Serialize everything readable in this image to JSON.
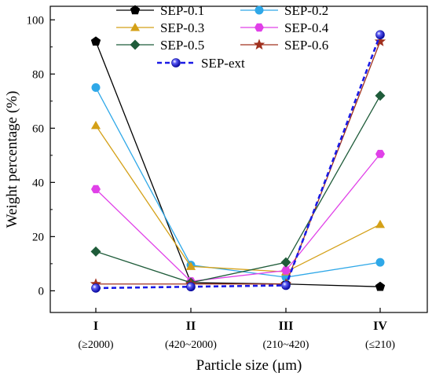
{
  "chart_data": {
    "type": "line",
    "title": "",
    "xlabel": "Particle size (μm)",
    "ylabel": "Weight percentage (%)",
    "categories": [
      "I",
      "II",
      "III",
      "IV"
    ],
    "category_sublabels": [
      "(≥2000)",
      "(420~2000)",
      "(210~420)",
      "(≤210)"
    ],
    "ylim": [
      -8,
      105
    ],
    "yticks": [
      0,
      20,
      40,
      60,
      80,
      100
    ],
    "legend_position": "top-center",
    "grid": false,
    "series": [
      {
        "name": "SEP-0.1",
        "color": "#000000",
        "marker": "pentagon",
        "dashed": false,
        "values": [
          92,
          3,
          2.5,
          1.5
        ]
      },
      {
        "name": "SEP-0.2",
        "color": "#2FA8E8",
        "marker": "circle",
        "dashed": false,
        "values": [
          75,
          9.5,
          5,
          10.5
        ]
      },
      {
        "name": "SEP-0.3",
        "color": "#D4A017",
        "marker": "triangle",
        "dashed": false,
        "values": [
          61,
          9,
          7,
          24.5
        ]
      },
      {
        "name": "SEP-0.4",
        "color": "#E040E8",
        "marker": "hexagon",
        "dashed": false,
        "values": [
          37.5,
          3.5,
          7.5,
          50.5
        ]
      },
      {
        "name": "SEP-0.5",
        "color": "#1F5C3A",
        "marker": "diamond",
        "dashed": false,
        "values": [
          14.5,
          3,
          10.5,
          72
        ]
      },
      {
        "name": "SEP-0.6",
        "color": "#A0301E",
        "marker": "star",
        "dashed": false,
        "values": [
          2.5,
          2.5,
          2.5,
          92
        ]
      },
      {
        "name": "SEP-ext",
        "color": "#1A1AE6",
        "marker": "ball",
        "dashed": true,
        "values": [
          1,
          1.5,
          2,
          94.5
        ]
      }
    ]
  }
}
